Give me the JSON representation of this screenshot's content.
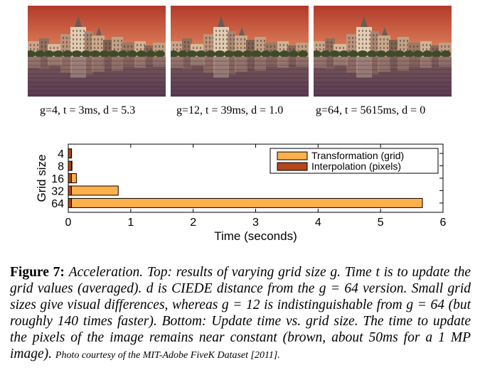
{
  "photos": [
    {
      "caption": "g=4, t = 3ms, d = 5.3"
    },
    {
      "caption": "g=12, t = 39ms, d = 1.0"
    },
    {
      "caption": "g=64, t = 5615ms, d = 0"
    }
  ],
  "colors": {
    "transformation": "#fdb04b",
    "interpolation": "#b5451b",
    "sky_top": "#b23a2a",
    "sky_bottom": "#e38b62",
    "water": "#5a3a52"
  },
  "chart_data": {
    "type": "bar",
    "orientation": "horizontal",
    "stacked": true,
    "categories": [
      "4",
      "8",
      "16",
      "32",
      "64"
    ],
    "series": [
      {
        "name": "Interpolation (pixels)",
        "values": [
          0.05,
          0.05,
          0.05,
          0.05,
          0.05
        ]
      },
      {
        "name": "Transformation (grid)",
        "values": [
          0.003,
          0.01,
          0.08,
          0.75,
          5.62
        ]
      }
    ],
    "xlabel": "Time (seconds)",
    "ylabel": "Grid size",
    "xlim": [
      0,
      6
    ],
    "xticks": [
      "0",
      "1",
      "2",
      "3",
      "4",
      "5",
      "6"
    ],
    "legend": "top-right"
  },
  "figure": {
    "label": "Figure 7:",
    "text": "Acceleration. Top: results of varying grid size g. Time t is to update the grid values (averaged). d is CIEDE distance from the g = 64 version. Small grid sizes give visual differences, whereas g = 12 is indistinguishable from g = 64 (but roughly 140 times faster). Bottom: Update time vs. grid size. The time to update the pixels of the image remains near constant (brown, about 50ms for a 1 MP image).",
    "credit": "Photo courtesy of the MIT-Adobe FiveK Dataset [2011]."
  }
}
